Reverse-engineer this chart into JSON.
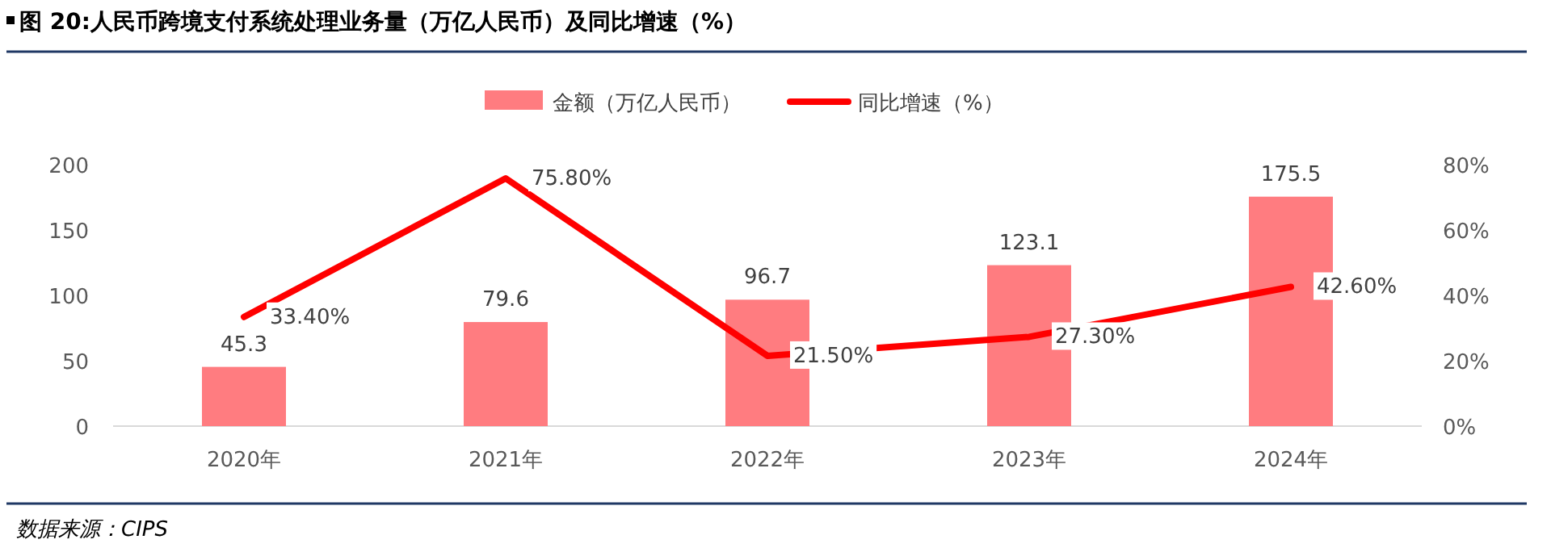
{
  "chart_data": {
    "type": "bar",
    "title": "图 20:人民币跨境支付系统处理业务量（万亿人民币）及同比增速（%）",
    "categories": [
      "2020年",
      "2021年",
      "2022年",
      "2023年",
      "2024年"
    ],
    "series": [
      {
        "name": "金额（万亿人民币）",
        "color": "#ff7c80",
        "values": [
          45.3,
          79.6,
          96.7,
          123.1,
          175.5
        ],
        "value_labels": [
          "45.3",
          "79.6",
          "96.7",
          "123.1",
          "175.5"
        ]
      },
      {
        "name": "同比增速（%）",
        "type": "line",
        "axis": "y2",
        "color": "#ff0000",
        "values": [
          33.4,
          75.8,
          21.5,
          27.3,
          42.6
        ],
        "value_labels": [
          "33.40%",
          "75.80%",
          "21.50%",
          "27.30%",
          "42.60%"
        ]
      }
    ],
    "ylim": [
      0,
      200
    ],
    "yticks": [
      0,
      50,
      100,
      150,
      200
    ],
    "y2lim": [
      0,
      80
    ],
    "y2ticks": [
      {
        "value": 0,
        "label": "0%"
      },
      {
        "value": 20,
        "label": "20%"
      },
      {
        "value": 40,
        "label": "40%"
      },
      {
        "value": 60,
        "label": "60%"
      },
      {
        "value": 80,
        "label": "80%"
      }
    ],
    "legend": "top",
    "annotations": [
      "数据来源：CIPS"
    ]
  }
}
